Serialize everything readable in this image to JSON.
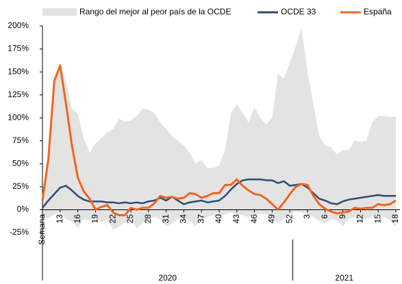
{
  "chart_data": {
    "type": "line",
    "categories": [
      "Semana",
      null,
      null,
      "13",
      null,
      null,
      "16",
      null,
      null,
      "19",
      null,
      null,
      "22",
      null,
      null,
      "25",
      null,
      null,
      "28",
      null,
      null,
      "31",
      null,
      null,
      "34",
      null,
      null,
      "37",
      null,
      null,
      "40",
      null,
      null,
      "43",
      null,
      null,
      "46",
      null,
      null,
      "49",
      null,
      null,
      "52",
      null,
      null,
      "3",
      null,
      null,
      "6",
      null,
      null,
      "9",
      null,
      null,
      "12",
      null,
      null,
      "15",
      null,
      null,
      "18"
    ],
    "x_groups": [
      "2020",
      "2021"
    ],
    "series": [
      {
        "name": "Rango del mejor al peor país de la OCDE",
        "color": "#e3e3e3",
        "type": "range",
        "high": [
          15,
          55,
          140,
          157,
          140,
          110,
          105,
          78,
          62,
          72,
          78,
          84,
          88,
          99,
          96,
          97,
          102,
          110,
          109,
          105,
          95,
          88,
          80,
          75,
          70,
          62,
          50,
          54,
          45,
          46,
          48,
          65,
          105,
          115,
          105,
          95,
          112,
          100,
          93,
          100,
          148,
          143,
          160,
          178,
          198,
          150,
          115,
          80,
          70,
          68,
          60,
          65,
          65,
          75,
          74,
          75,
          95,
          102,
          102,
          101,
          101
        ],
        "low": [
          -8,
          -9,
          -5,
          -2,
          -10,
          -13,
          -20,
          -10,
          -12,
          -8,
          -14,
          -10,
          -22,
          -18,
          -14,
          -10,
          -20,
          -15,
          -10,
          -8,
          -10,
          -18,
          -15,
          -10,
          -8,
          -12,
          -18,
          -10,
          -8,
          -6,
          -8,
          -5,
          -3,
          -5,
          -6,
          -8,
          -6,
          -4,
          -5,
          -8,
          -15,
          -10,
          -5,
          -2,
          -3,
          -5,
          -8,
          -12,
          -15,
          -10,
          -12,
          -18,
          -10,
          -8,
          -12,
          -10,
          -8,
          -5,
          -8,
          -12,
          -18
        ]
      },
      {
        "name": "OCDE 33",
        "color": "#2e4a6e",
        "values": [
          2,
          10,
          17,
          24,
          26,
          21,
          15,
          11,
          9,
          9,
          9,
          8,
          8,
          7,
          8,
          7,
          8,
          7,
          9,
          10,
          13,
          10,
          14,
          10,
          6,
          8,
          9,
          10,
          8,
          9,
          10,
          15,
          22,
          28,
          32,
          33,
          33,
          33,
          32,
          32,
          29,
          31,
          26,
          27,
          28,
          24,
          18,
          12,
          10,
          7,
          6,
          9,
          11,
          12,
          13,
          14,
          15,
          16,
          15,
          15,
          15
        ]
      },
      {
        "name": "España",
        "color": "#f0641e",
        "values": [
          10,
          55,
          140,
          157,
          115,
          70,
          35,
          20,
          12,
          0,
          3,
          5,
          -3,
          -6,
          -6,
          2,
          0,
          2,
          2,
          7,
          15,
          13,
          14,
          12,
          13,
          18,
          17,
          13,
          15,
          18,
          18,
          27,
          27,
          33,
          26,
          21,
          17,
          16,
          12,
          6,
          0,
          8,
          17,
          25,
          28,
          27,
          15,
          6,
          1,
          -2,
          -4,
          -3,
          -2,
          2,
          1,
          2,
          2,
          6,
          5,
          6,
          10
        ]
      }
    ],
    "ylim": [
      -25,
      200
    ],
    "yticks": [
      {
        "value": -25,
        "label": "-25%"
      },
      {
        "value": 0,
        "label": "0%"
      },
      {
        "value": 25,
        "label": "25%"
      },
      {
        "value": 50,
        "label": "50%"
      },
      {
        "value": 75,
        "label": "75%"
      },
      {
        "value": 100,
        "label": "100%"
      },
      {
        "value": 125,
        "label": "125%"
      },
      {
        "value": 150,
        "label": "150%"
      },
      {
        "value": 175,
        "label": "175%"
      },
      {
        "value": 200,
        "label": "200%"
      }
    ],
    "grid": false
  }
}
